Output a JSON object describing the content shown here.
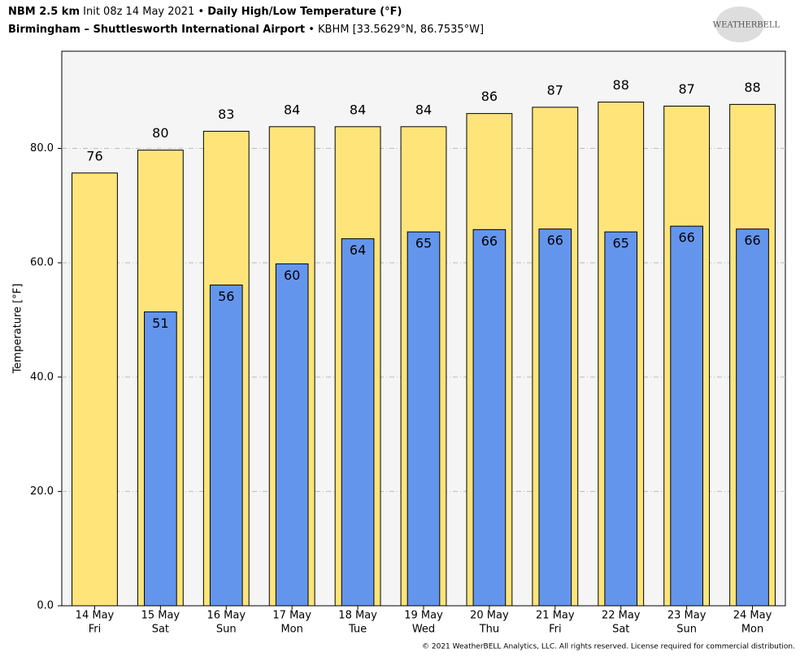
{
  "chart_data": {
    "type": "bar",
    "title_parts": [
      "NBM 2.5 km",
      "Init 08z 14 May 2021 •",
      "Daily High/Low Temperature (°F)"
    ],
    "subtitle_parts": [
      "Birmingham – Shuttlesworth International Airport",
      "• KBHM [33.5629°N, 86.7535°W]"
    ],
    "logo": "WEATHERBELL",
    "ylabel": "Temperature [°F]",
    "footer": "© 2021 WeatherBELL Analytics, LLC. All rights reserved. License required for commercial distribution.",
    "categories": [
      [
        "14 May",
        "Fri"
      ],
      [
        "15 May",
        "Sat"
      ],
      [
        "16 May",
        "Sun"
      ],
      [
        "17 May",
        "Mon"
      ],
      [
        "18 May",
        "Tue"
      ],
      [
        "19 May",
        "Wed"
      ],
      [
        "20 May",
        "Thu"
      ],
      [
        "21 May",
        "Fri"
      ],
      [
        "22 May",
        "Sat"
      ],
      [
        "23 May",
        "Sun"
      ],
      [
        "24 May",
        "Mon"
      ]
    ],
    "series": [
      {
        "name": "High",
        "color": "#ffe47a",
        "values": [
          75.7,
          79.7,
          83.0,
          83.8,
          83.8,
          83.8,
          86.1,
          87.2,
          88.1,
          87.4,
          87.7
        ],
        "value_labels": [
          "76",
          "80",
          "83",
          "84",
          "84",
          "84",
          "86",
          "87",
          "88",
          "87",
          "88"
        ]
      },
      {
        "name": "Low",
        "color": "#6495ed",
        "values": [
          null,
          51.4,
          56.1,
          59.8,
          64.2,
          65.4,
          65.8,
          65.9,
          65.4,
          66.4,
          65.9
        ],
        "value_labels": [
          null,
          "51",
          "56",
          "60",
          "64",
          "65",
          "66",
          "66",
          "65",
          "66",
          "66"
        ]
      }
    ],
    "ylim": [
      0,
      97
    ],
    "yticks": [
      {
        "value": 0,
        "label": "0.0"
      },
      {
        "value": 20,
        "label": "20.0"
      },
      {
        "value": 40,
        "label": "40.0"
      },
      {
        "value": 60,
        "label": "60.0"
      },
      {
        "value": 80,
        "label": "80.0"
      }
    ],
    "grid": true
  }
}
